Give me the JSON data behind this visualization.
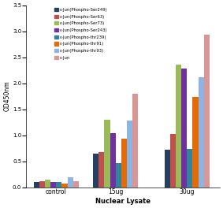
{
  "categories": [
    "control",
    "15ug",
    "30ug"
  ],
  "series": [
    {
      "label": "c-Jun(Phospho-Ser249)",
      "color": "#243F60",
      "values": [
        0.1,
        0.65,
        0.72
      ]
    },
    {
      "label": "c-Jun(Phospho-Ser63)",
      "color": "#C0504D",
      "values": [
        0.12,
        0.68,
        1.03
      ]
    },
    {
      "label": "c-Jun(Phospho-Ser73)",
      "color": "#9BBB59",
      "values": [
        0.15,
        1.3,
        2.36
      ]
    },
    {
      "label": "c-Jun(Phospho-Ser243)",
      "color": "#7030A0",
      "values": [
        0.1,
        1.04,
        2.28
      ]
    },
    {
      "label": "c-Jun(Phospho-thr239)",
      "color": "#31849B",
      "values": [
        0.1,
        0.46,
        0.74
      ]
    },
    {
      "label": "c-Jun(Phospho-thr91)",
      "color": "#E36C09",
      "values": [
        0.07,
        0.93,
        1.74
      ]
    },
    {
      "label": "c-Jun(Phospho-thr93)",
      "color": "#8EB4E3",
      "values": [
        0.19,
        1.28,
        2.12
      ]
    },
    {
      "label": "c-Jun",
      "color": "#D99694",
      "values": [
        0.12,
        1.8,
        2.93
      ]
    }
  ],
  "xlabel": "Nuclear Lysate",
  "ylabel": "OD450nm",
  "ylim": [
    0,
    3.5
  ],
  "yticks": [
    0,
    0.5,
    1.0,
    1.5,
    2.0,
    2.5,
    3.0,
    3.5
  ],
  "background_color": "#FFFFFF"
}
